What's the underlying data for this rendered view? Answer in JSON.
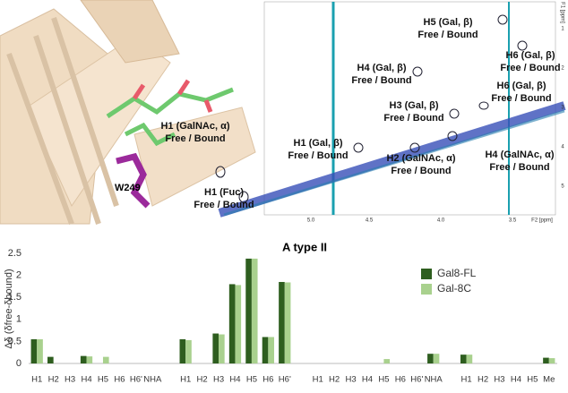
{
  "spectrum": {
    "annotations": [
      {
        "name": "H5 (Gal, β)",
        "state": "Free / Bound"
      },
      {
        "name": "H6 (Gal, β)",
        "state": "Free / Bound"
      },
      {
        "name": "H4 (Gal, β)",
        "state": "Free / Bound"
      },
      {
        "name": "H6 (Gal, β)",
        "state": "Free / Bound"
      },
      {
        "name": "H3 (Gal, β)",
        "state": "Free / Bound"
      },
      {
        "name": "H1 (GalNAc, α)",
        "state": "Free / Bound"
      },
      {
        "name": "H1 (Gal, β)",
        "state": "Free / Bound"
      },
      {
        "name": "H2 (GalNAc, α)",
        "state": "Free / Bound"
      },
      {
        "name": "H4 (GalNAc, α)",
        "state": "Free / Bound"
      },
      {
        "name": "H1 (Fuc)",
        "state": "Free / Bound"
      }
    ],
    "residue_label": "W249",
    "f2_ticks": [
      "5.0",
      "4.5",
      "4.0",
      "3.5"
    ],
    "f2_label": "F2 [ppm]",
    "f1_ticks": [
      "1",
      "2",
      "3",
      "4",
      "5"
    ],
    "f1_label": "F1 [ppm]"
  },
  "chart_data": {
    "type": "bar",
    "title": "A type II",
    "y_label": "Δδ (δfree-δbound)",
    "categories": [
      "H1",
      "H2",
      "H3",
      "H4",
      "H5",
      "H6",
      "H6'",
      "NHA",
      null,
      "H1",
      "H2",
      "H3",
      "H4",
      "H5",
      "H6",
      "H6'",
      null,
      "H1",
      "H2",
      "H3",
      "H4",
      "H5",
      "H6",
      "H6'",
      "NHA",
      null,
      "H1",
      "H2",
      "H3",
      "H4",
      "H5",
      "Me"
    ],
    "series": [
      {
        "name": "Gal8-FL",
        "color": "#2e5e1f",
        "values": [
          0.55,
          0.15,
          0,
          0.17,
          0,
          0,
          0,
          0,
          null,
          0.55,
          0,
          0.68,
          1.8,
          2.38,
          0.6,
          1.85,
          null,
          0,
          0,
          0,
          0,
          0,
          0,
          0,
          0.22,
          null,
          0.2,
          0,
          0,
          0,
          0,
          0.13
        ]
      },
      {
        "name": "Gal-8C",
        "color": "#a9d18e",
        "values": [
          0.55,
          0,
          0,
          0.16,
          0.15,
          0,
          0,
          0,
          null,
          0.53,
          0,
          0.66,
          1.78,
          2.38,
          0.6,
          1.84,
          null,
          0,
          0,
          0,
          0,
          0.1,
          0,
          0,
          0.22,
          null,
          0.2,
          0,
          0,
          0,
          0,
          0.12
        ]
      }
    ],
    "ylim": [
      0,
      2.5
    ],
    "yticks": [
      0,
      0.5,
      1,
      1.5,
      2,
      2.5
    ],
    "legend": "upper right"
  }
}
